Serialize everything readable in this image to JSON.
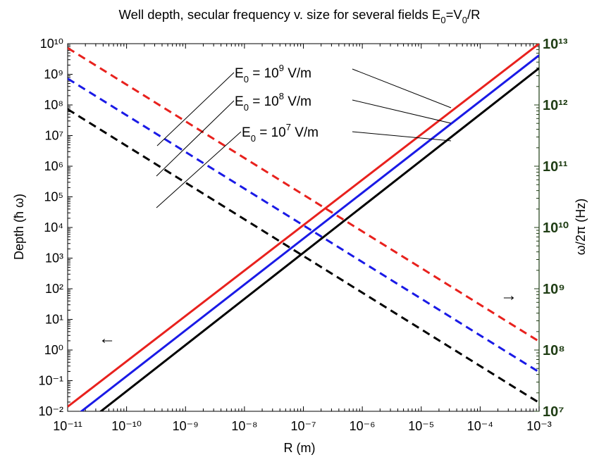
{
  "chart_data": {
    "type": "line",
    "title": "Well depth, secular frequency v. size for several fields E",
    "title_sub": "0",
    "title_tail": "=V",
    "title_sub2": "0",
    "title_end": "/R",
    "xlabel": "R (m)",
    "ylabel_left": "Depth (ħ ω)",
    "ylabel_right": "ω/2π (Hz)",
    "x_scale": "log",
    "y_scale": "log",
    "xlim_exp": [
      -11,
      -3
    ],
    "ylim_left_exp": [
      -2,
      10
    ],
    "ylim_right_exp": [
      7,
      13
    ],
    "x_ticks": [
      "10⁻¹¹",
      "10⁻¹⁰",
      "10⁻⁹",
      "10⁻⁸",
      "10⁻⁷",
      "10⁻⁶",
      "10⁻⁵",
      "10⁻⁴",
      "10⁻³"
    ],
    "y_left_ticks": [
      "10⁻²",
      "10⁻¹",
      "10⁰",
      "10¹",
      "10²",
      "10³",
      "10⁴",
      "10⁵",
      "10⁶",
      "10⁷",
      "10⁸",
      "10⁹",
      "10¹⁰"
    ],
    "y_right_ticks": [
      "10⁷",
      "10⁸",
      "10⁹",
      "10¹⁰",
      "10¹¹",
      "10¹²",
      "10¹³"
    ],
    "grid": false,
    "colors": {
      "red": "#e8211d",
      "blue": "#1a1ae6",
      "black": "#000000",
      "right_axis": "#1f3d14"
    },
    "series": [
      {
        "field": "E0 = 10^9 V/m",
        "color": "red",
        "depth_log10": [
          [
            -11,
            -1.85
          ],
          [
            -3,
            10
          ]
        ],
        "freq_log10": [
          [
            -11,
            12.93
          ],
          [
            -3,
            8.14
          ]
        ]
      },
      {
        "field": "E0 = 10^8 V/m",
        "color": "blue",
        "depth_log10": [
          [
            -11,
            -2.35
          ],
          [
            -3,
            9.62
          ]
        ],
        "freq_log10": [
          [
            -11,
            12.43
          ],
          [
            -3,
            7.64
          ]
        ]
      },
      {
        "field": "E0 = 10^7 V/m",
        "color": "black",
        "depth_log10": [
          [
            -11,
            -2.85
          ],
          [
            -3,
            9.2
          ]
        ],
        "freq_log10": [
          [
            -11,
            11.93
          ],
          [
            -3,
            7.14
          ]
        ]
      }
    ],
    "annotations": [
      {
        "base": "E",
        "sub": "0",
        "mid": " = 10",
        "sup": "9",
        "unit": " V/m"
      },
      {
        "base": "E",
        "sub": "0",
        "mid": " = 10",
        "sup": "8",
        "unit": " V/m"
      },
      {
        "base": "E",
        "sub": "0",
        "mid": " = 10",
        "sup": "7",
        "unit": " V/m"
      }
    ],
    "arrows": {
      "left": "←",
      "right": "→"
    }
  }
}
